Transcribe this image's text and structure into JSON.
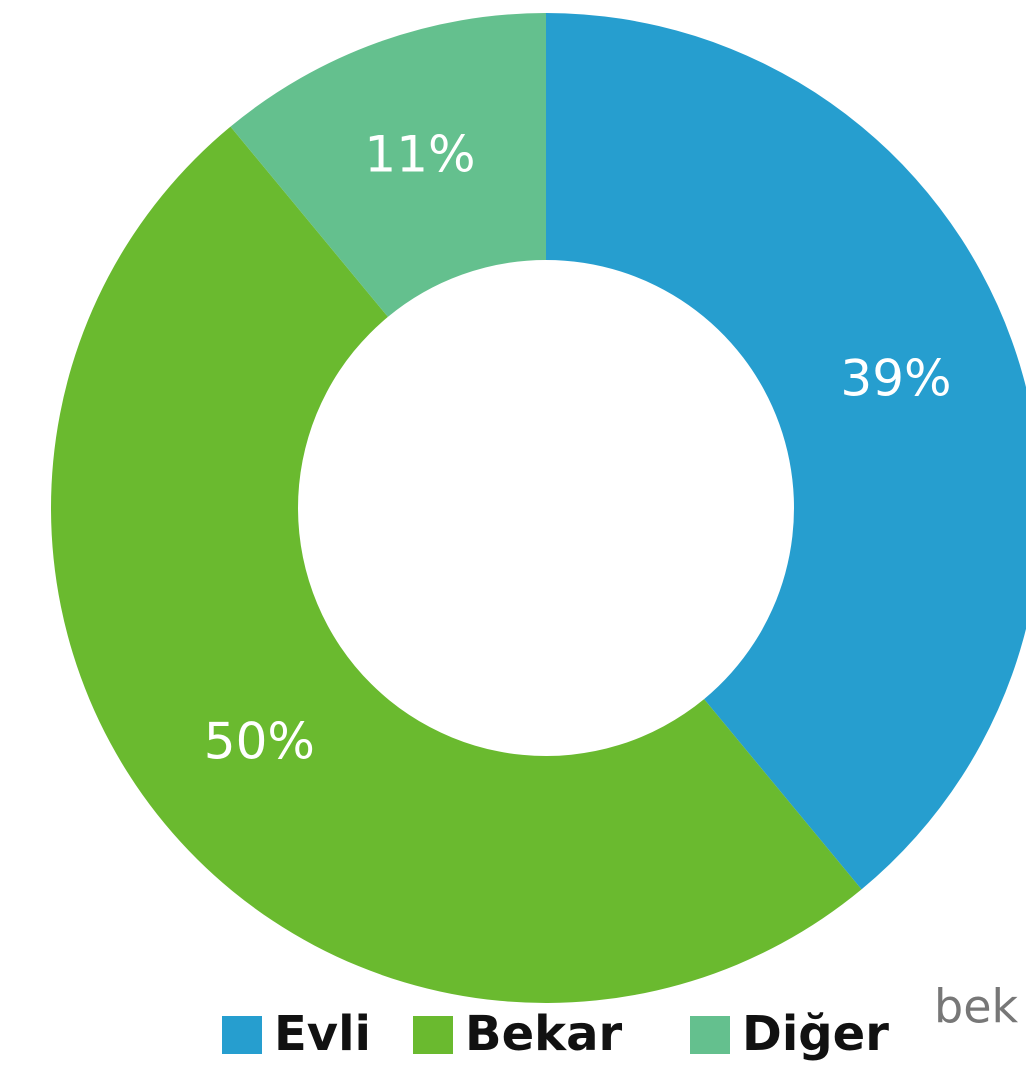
{
  "chart_data": {
    "type": "donut",
    "categories": [
      "Evli",
      "Bekar",
      "Diğer"
    ],
    "values": [
      39,
      50,
      11
    ],
    "value_labels": [
      "39%",
      "50%",
      "11%"
    ],
    "colors": [
      "#269ecf",
      "#6aba2f",
      "#64c08e"
    ],
    "fragment": "bek"
  }
}
